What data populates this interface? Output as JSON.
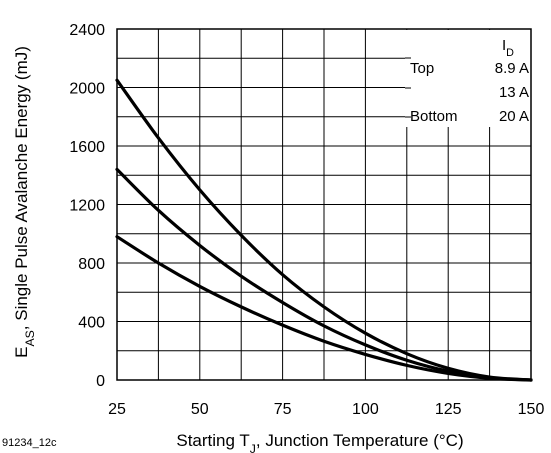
{
  "figure_id": "91234_12c",
  "chart_data": {
    "type": "line",
    "xlabel": {
      "pre": "Starting T",
      "sub": "J",
      "post": ", Junction Temperature (°C)"
    },
    "ylabel": {
      "pre": "E",
      "sub": "AS",
      "post": ", Single Pulse Avalanche Energy (mJ)"
    },
    "xlim": [
      25,
      150
    ],
    "ylim": [
      0,
      2400
    ],
    "xticks": [
      25,
      50,
      75,
      100,
      125,
      150
    ],
    "yticks": [
      0,
      400,
      800,
      1200,
      1600,
      2000,
      2400
    ],
    "x_minor_step": 12.5,
    "y_minor_step": 200,
    "grid": true,
    "legend": {
      "position": "top-right",
      "header": {
        "pre": "I",
        "sub": "D"
      },
      "entries": [
        {
          "tag": "Top",
          "label": "8.9 A"
        },
        {
          "tag": "",
          "label": "13 A"
        },
        {
          "tag": "Bottom",
          "label": "20 A"
        }
      ]
    },
    "series": [
      {
        "label": "8.9 A",
        "x": [
          25,
          37.5,
          50,
          62.5,
          75,
          87.5,
          100,
          112.5,
          125,
          137.5,
          150
        ],
        "y": [
          2050,
          1655,
          1300,
          990,
          720,
          500,
          320,
          180,
          80,
          20,
          0
        ]
      },
      {
        "label": "13 A",
        "x": [
          25,
          37.5,
          50,
          62.5,
          75,
          87.5,
          100,
          112.5,
          125,
          137.5,
          150
        ],
        "y": [
          1440,
          1160,
          920,
          710,
          530,
          370,
          240,
          135,
          60,
          15,
          0
        ]
      },
      {
        "label": "20 A",
        "x": [
          25,
          37.5,
          50,
          62.5,
          75,
          87.5,
          100,
          112.5,
          125,
          137.5,
          150
        ],
        "y": [
          980,
          800,
          640,
          500,
          375,
          265,
          175,
          100,
          45,
          12,
          0
        ]
      }
    ]
  }
}
